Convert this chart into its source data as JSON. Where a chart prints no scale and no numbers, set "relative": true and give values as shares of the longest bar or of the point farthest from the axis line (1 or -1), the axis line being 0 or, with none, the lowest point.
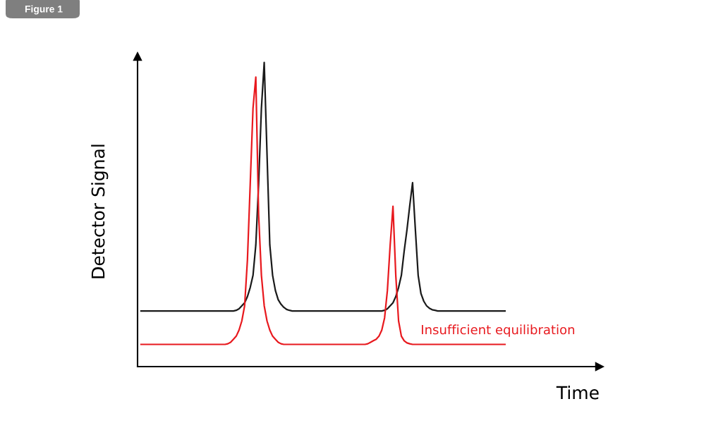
{
  "chart_data": {
    "type": "line",
    "title": "Figure 1",
    "xlabel": "Time",
    "ylabel": "Detector Signal",
    "relative": true,
    "grid": false,
    "legend": false,
    "marker": "none",
    "line_style": "solid",
    "categories": [
      null,
      null,
      null,
      null,
      null,
      null,
      null,
      null,
      null,
      null,
      null,
      null,
      null,
      null,
      null,
      null,
      null,
      null,
      null,
      null,
      null,
      null,
      null,
      null,
      null,
      null,
      null,
      null,
      null,
      null,
      null,
      null,
      null,
      null,
      null,
      null,
      null,
      null,
      null,
      null,
      null,
      null,
      null,
      null,
      null,
      null,
      null,
      null,
      null,
      null,
      null,
      null,
      null,
      null,
      null,
      null,
      null,
      null,
      null,
      null,
      null,
      null,
      null,
      null,
      null,
      null,
      null,
      null,
      null,
      null,
      null,
      null,
      null,
      null,
      null,
      null,
      null,
      null,
      null,
      null,
      null,
      null,
      null,
      null,
      null,
      null,
      null,
      null,
      null,
      null,
      null,
      null,
      null,
      null,
      null,
      null,
      null,
      null,
      null,
      null,
      null,
      null,
      null,
      null,
      null,
      null,
      null,
      null,
      null,
      null,
      null,
      null,
      null,
      null,
      null,
      null,
      null,
      null,
      null,
      null,
      null,
      null,
      null,
      null,
      null,
      null,
      null,
      null,
      null,
      null,
      null
    ],
    "series": [
      {
        "color": "#1a1a1a",
        "values": [
          0.183,
          0.183,
          0.183,
          0.183,
          0.183,
          0.183,
          0.183,
          0.183,
          0.183,
          0.183,
          0.183,
          0.183,
          0.183,
          0.183,
          0.183,
          0.183,
          0.183,
          0.183,
          0.183,
          0.183,
          0.183,
          0.183,
          0.183,
          0.183,
          0.183,
          0.183,
          0.183,
          0.183,
          0.183,
          0.183,
          0.183,
          0.183,
          0.183,
          0.183,
          0.185,
          0.19,
          0.2,
          0.21,
          0.23,
          0.26,
          0.3,
          0.4,
          0.6,
          0.85,
          1.0,
          0.7,
          0.4,
          0.3,
          0.25,
          0.22,
          0.205,
          0.195,
          0.188,
          0.185,
          0.183,
          0.183,
          0.183,
          0.183,
          0.183,
          0.183,
          0.183,
          0.183,
          0.183,
          0.183,
          0.183,
          0.183,
          0.183,
          0.183,
          0.183,
          0.183,
          0.183,
          0.183,
          0.183,
          0.183,
          0.183,
          0.183,
          0.183,
          0.183,
          0.183,
          0.183,
          0.183,
          0.183,
          0.183,
          0.183,
          0.183,
          0.183,
          0.183,
          0.185,
          0.19,
          0.2,
          0.21,
          0.23,
          0.26,
          0.3,
          0.38,
          0.45,
          0.53,
          0.605,
          0.45,
          0.3,
          0.24,
          0.215,
          0.2,
          0.192,
          0.187,
          0.185,
          0.183,
          0.183,
          0.183,
          0.183,
          0.183,
          0.183,
          0.183,
          0.183,
          0.183,
          0.183,
          0.183,
          0.183,
          0.183,
          0.183,
          0.183,
          0.183,
          0.183,
          0.183,
          0.183,
          0.183,
          0.183,
          0.183,
          0.183,
          0.183,
          0.183
        ]
      },
      {
        "name": "Insufficient equilibration",
        "color": "#e8191e",
        "values": [
          0.073,
          0.073,
          0.073,
          0.073,
          0.073,
          0.073,
          0.073,
          0.073,
          0.073,
          0.073,
          0.073,
          0.073,
          0.073,
          0.073,
          0.073,
          0.073,
          0.073,
          0.073,
          0.073,
          0.073,
          0.073,
          0.073,
          0.073,
          0.073,
          0.073,
          0.073,
          0.073,
          0.073,
          0.073,
          0.073,
          0.073,
          0.075,
          0.08,
          0.09,
          0.1,
          0.12,
          0.15,
          0.2,
          0.35,
          0.6,
          0.85,
          0.952,
          0.5,
          0.3,
          0.2,
          0.15,
          0.12,
          0.1,
          0.09,
          0.08,
          0.075,
          0.073,
          0.073,
          0.073,
          0.073,
          0.073,
          0.073,
          0.073,
          0.073,
          0.073,
          0.073,
          0.073,
          0.073,
          0.073,
          0.073,
          0.073,
          0.073,
          0.073,
          0.073,
          0.073,
          0.073,
          0.073,
          0.073,
          0.073,
          0.073,
          0.073,
          0.073,
          0.073,
          0.073,
          0.073,
          0.073,
          0.075,
          0.08,
          0.085,
          0.09,
          0.1,
          0.12,
          0.16,
          0.25,
          0.4,
          0.527,
          0.3,
          0.15,
          0.1,
          0.085,
          0.078,
          0.075,
          0.073,
          0.073,
          0.073,
          0.073,
          0.073,
          0.073,
          0.073,
          0.073,
          0.073,
          0.073,
          0.073,
          0.073,
          0.073,
          0.073,
          0.073,
          0.073,
          0.073,
          0.073,
          0.073,
          0.073,
          0.073,
          0.073,
          0.073,
          0.073,
          0.073,
          0.073,
          0.073,
          0.073,
          0.073,
          0.073,
          0.073,
          0.073,
          0.073,
          0.073
        ]
      }
    ]
  }
}
